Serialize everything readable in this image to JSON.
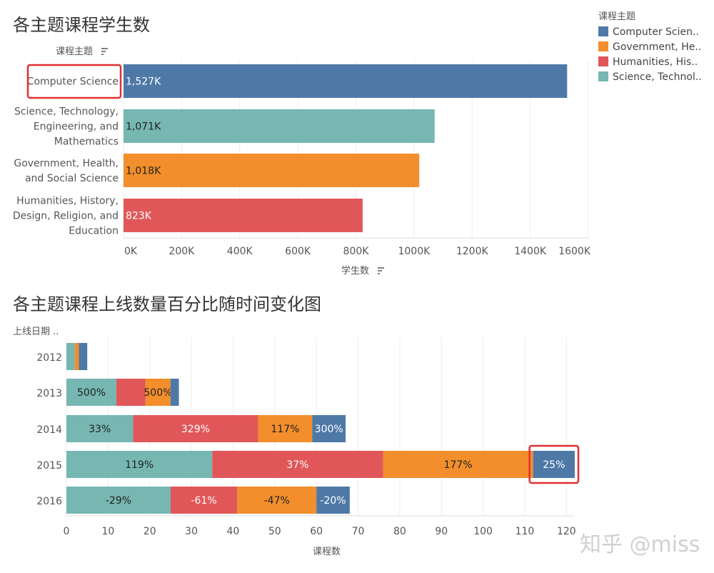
{
  "colors": {
    "cs": "#4e79a7",
    "gov": "#f28e2b",
    "hum": "#e15759",
    "sci": "#76b7b2",
    "highlight": "#e03030",
    "grid": "#eeeeee"
  },
  "legend": {
    "title": "课程主题",
    "items": [
      {
        "label": "Computer Scien..",
        "color": "#4e79a7"
      },
      {
        "label": "Government, He..",
        "color": "#f28e2b"
      },
      {
        "label": "Humanities, His..",
        "color": "#e15759"
      },
      {
        "label": "Science, Technol..",
        "color": "#76b7b2"
      }
    ]
  },
  "watermark": "知乎 @miss",
  "chart_data": [
    {
      "type": "bar",
      "orientation": "horizontal",
      "title": "各主题课程学生数",
      "ylabel": "课程主题",
      "xlabel": "学生数",
      "categories": [
        [
          "Computer Science"
        ],
        [
          "Science, Technology,",
          "Engineering, and",
          "Mathematics"
        ],
        [
          "Government, Health,",
          "and Social Science"
        ],
        [
          "Humanities, History,",
          "Design, Religion, and",
          "Education"
        ]
      ],
      "values": [
        1527,
        1071,
        1018,
        823
      ],
      "value_labels": [
        "1,527K",
        "1,071K",
        "1,018K",
        "823K"
      ],
      "series_keys": [
        "cs",
        "sci",
        "gov",
        "hum"
      ],
      "xlim": [
        0,
        1600
      ],
      "ticks": [
        0,
        200,
        400,
        600,
        800,
        1000,
        1200,
        1400,
        1600
      ],
      "tick_labels": [
        "0K",
        "200K",
        "400K",
        "600K",
        "800K",
        "1000K",
        "1200K",
        "1400K",
        "1600K"
      ],
      "highlighted_category": "Computer Science"
    },
    {
      "type": "bar",
      "orientation": "horizontal",
      "stacked": true,
      "title": "各主题课程上线数量百分比随时间变化图",
      "ylabel": "上线日期 ..",
      "xlabel": "课程数",
      "categories": [
        "2012",
        "2013",
        "2014",
        "2015",
        "2016"
      ],
      "xlim": [
        0,
        122
      ],
      "ticks": [
        0,
        10,
        20,
        30,
        40,
        50,
        60,
        70,
        80,
        90,
        100,
        110,
        120
      ],
      "series": [
        {
          "name": "Science, Technology, Engineering, and Mathematics",
          "key": "sci",
          "values": [
            2,
            12,
            16,
            35,
            25
          ],
          "labels": [
            "",
            "500%",
            "33%",
            "119%",
            "-29%"
          ]
        },
        {
          "name": "Humanities, History, Design, Religion, and Education",
          "key": "hum",
          "values": [
            0,
            7,
            30,
            41,
            16
          ],
          "labels": [
            "",
            "",
            "329%",
            "37%",
            "-61%"
          ]
        },
        {
          "name": "Government, Health, and Social Science",
          "key": "gov",
          "values": [
            1,
            6,
            13,
            36,
            19
          ],
          "labels": [
            "",
            "500%",
            "117%",
            "177%",
            "-47%"
          ]
        },
        {
          "name": "Computer Science",
          "key": "cs",
          "values": [
            2,
            2,
            8,
            10,
            8
          ],
          "labels": [
            "",
            "",
            "300%",
            "25%",
            "-20%"
          ]
        }
      ],
      "highlighted": {
        "category": "2015",
        "series": "Computer Science"
      }
    }
  ]
}
